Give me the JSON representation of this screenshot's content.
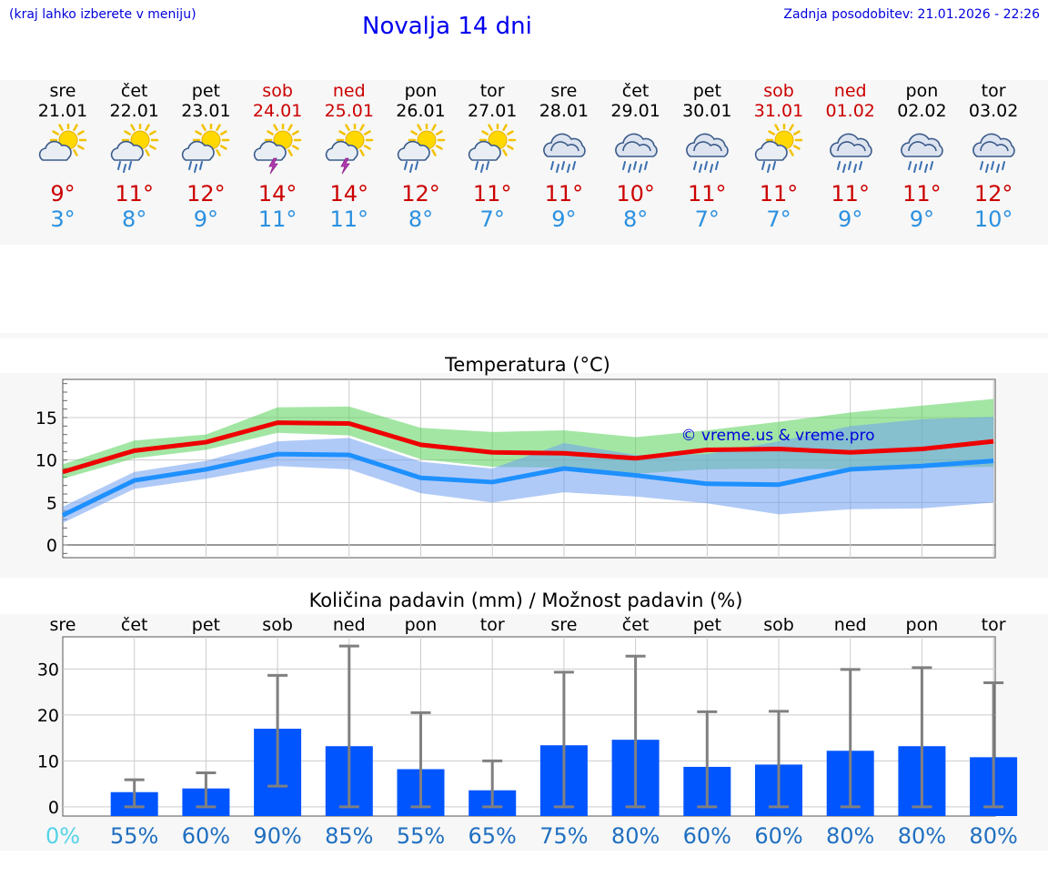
{
  "header": {
    "hint": "(kraj lahko izberete v meniju)",
    "title": "Novalja 14 dni",
    "updated": "Zadnja posodobitev: 21.01.2026 - 22:26"
  },
  "colors": {
    "max": "#cc0000",
    "min": "#2a90e0",
    "bar": "#0055ff",
    "weekend": "#cc0000"
  },
  "days": [
    {
      "name": "sre",
      "date": "21.01",
      "weekend": false,
      "icon": "sun-cloud-icon",
      "max": "9°",
      "min": "3°"
    },
    {
      "name": "čet",
      "date": "22.01",
      "weekend": false,
      "icon": "sun-cloud-rain-icon",
      "max": "11°",
      "min": "8°"
    },
    {
      "name": "pet",
      "date": "23.01",
      "weekend": false,
      "icon": "sun-cloud-rain-icon",
      "max": "12°",
      "min": "9°"
    },
    {
      "name": "sob",
      "date": "24.01",
      "weekend": true,
      "icon": "sun-cloud-thunder-icon",
      "max": "14°",
      "min": "11°"
    },
    {
      "name": "ned",
      "date": "25.01",
      "weekend": true,
      "icon": "sun-cloud-thunder-icon",
      "max": "14°",
      "min": "11°"
    },
    {
      "name": "pon",
      "date": "26.01",
      "weekend": false,
      "icon": "sun-cloud-rain-icon",
      "max": "12°",
      "min": "8°"
    },
    {
      "name": "tor",
      "date": "27.01",
      "weekend": false,
      "icon": "sun-cloud-rain-icon",
      "max": "11°",
      "min": "7°"
    },
    {
      "name": "sre",
      "date": "28.01",
      "weekend": false,
      "icon": "cloud-heavy-rain-icon",
      "max": "11°",
      "min": "9°"
    },
    {
      "name": "čet",
      "date": "29.01",
      "weekend": false,
      "icon": "cloud-heavy-rain-icon",
      "max": "10°",
      "min": "8°"
    },
    {
      "name": "pet",
      "date": "30.01",
      "weekend": false,
      "icon": "cloud-heavy-rain-icon",
      "max": "11°",
      "min": "7°"
    },
    {
      "name": "sob",
      "date": "31.01",
      "weekend": true,
      "icon": "sun-cloud-rain-icon",
      "max": "11°",
      "min": "7°"
    },
    {
      "name": "ned",
      "date": "01.02",
      "weekend": true,
      "icon": "cloud-heavy-rain-icon",
      "max": "11°",
      "min": "9°"
    },
    {
      "name": "pon",
      "date": "02.02",
      "weekend": false,
      "icon": "cloud-heavy-rain-icon",
      "max": "11°",
      "min": "9°"
    },
    {
      "name": "tor",
      "date": "03.02",
      "weekend": false,
      "icon": "cloud-heavy-rain-icon",
      "max": "12°",
      "min": "10°"
    }
  ],
  "chart_data": [
    {
      "type": "line",
      "title": "Temperatura (°C)",
      "ylim": [
        -1.5,
        19.5
      ],
      "yticks": [
        0,
        5,
        10,
        15
      ],
      "x": [
        0,
        1,
        2,
        3,
        4,
        5,
        6,
        7,
        8,
        9,
        10,
        11,
        12,
        13
      ],
      "series": [
        {
          "name": "max",
          "values": [
            8.6,
            11.1,
            12.1,
            14.4,
            14.3,
            11.8,
            10.9,
            10.8,
            10.2,
            11.2,
            11.3,
            10.9,
            11.3,
            12.2
          ]
        },
        {
          "name": "min",
          "values": [
            3.5,
            7.6,
            8.9,
            10.7,
            10.6,
            7.9,
            7.4,
            9.0,
            8.2,
            7.2,
            7.1,
            8.9,
            9.3,
            9.9
          ]
        }
      ],
      "max_band": {
        "low": [
          7.8,
          10.2,
          11.2,
          13.2,
          12.9,
          10.1,
          9.2,
          9.1,
          8.4,
          8.9,
          9.0,
          8.9,
          9.1,
          9.2
        ],
        "high": [
          9.5,
          12.3,
          13.0,
          16.2,
          16.3,
          13.8,
          13.3,
          13.5,
          12.7,
          13.5,
          14.5,
          15.6,
          16.4,
          17.2
        ]
      },
      "min_band": {
        "low": [
          2.6,
          6.6,
          7.8,
          9.3,
          8.9,
          6.1,
          5.0,
          6.2,
          5.7,
          4.9,
          3.6,
          4.2,
          4.3,
          5.0
        ],
        "high": [
          4.5,
          8.6,
          9.9,
          12.2,
          12.6,
          9.8,
          9.0,
          12.0,
          10.6,
          10.7,
          12.2,
          14.0,
          14.8,
          15.1
        ]
      },
      "watermark": "© vreme.us & vreme.pro"
    },
    {
      "type": "bar",
      "title": "Količina padavin (mm) / Možnost padavin (%)",
      "ylim": [
        -2,
        37
      ],
      "yticks": [
        0,
        10,
        20,
        30
      ],
      "categories": [
        "sre",
        "čet",
        "pet",
        "sob",
        "ned",
        "pon",
        "tor",
        "sre",
        "čet",
        "pet",
        "sob",
        "ned",
        "pon",
        "tor"
      ],
      "values": [
        0,
        3.2,
        4.0,
        17.0,
        13.2,
        8.2,
        3.6,
        13.4,
        14.6,
        8.7,
        9.2,
        12.2,
        13.2,
        10.8
      ],
      "err_low": [
        0,
        0,
        0,
        4.5,
        0,
        0,
        0,
        0,
        0,
        0,
        0,
        0,
        0,
        0
      ],
      "err_high": [
        0,
        5.9,
        7.4,
        28.6,
        35.0,
        20.5,
        10.0,
        29.3,
        32.8,
        20.7,
        20.8,
        29.9,
        30.3,
        27.0
      ],
      "probability": [
        "0%",
        "55%",
        "60%",
        "90%",
        "85%",
        "55%",
        "65%",
        "75%",
        "80%",
        "60%",
        "60%",
        "80%",
        "80%",
        "80%"
      ]
    }
  ]
}
